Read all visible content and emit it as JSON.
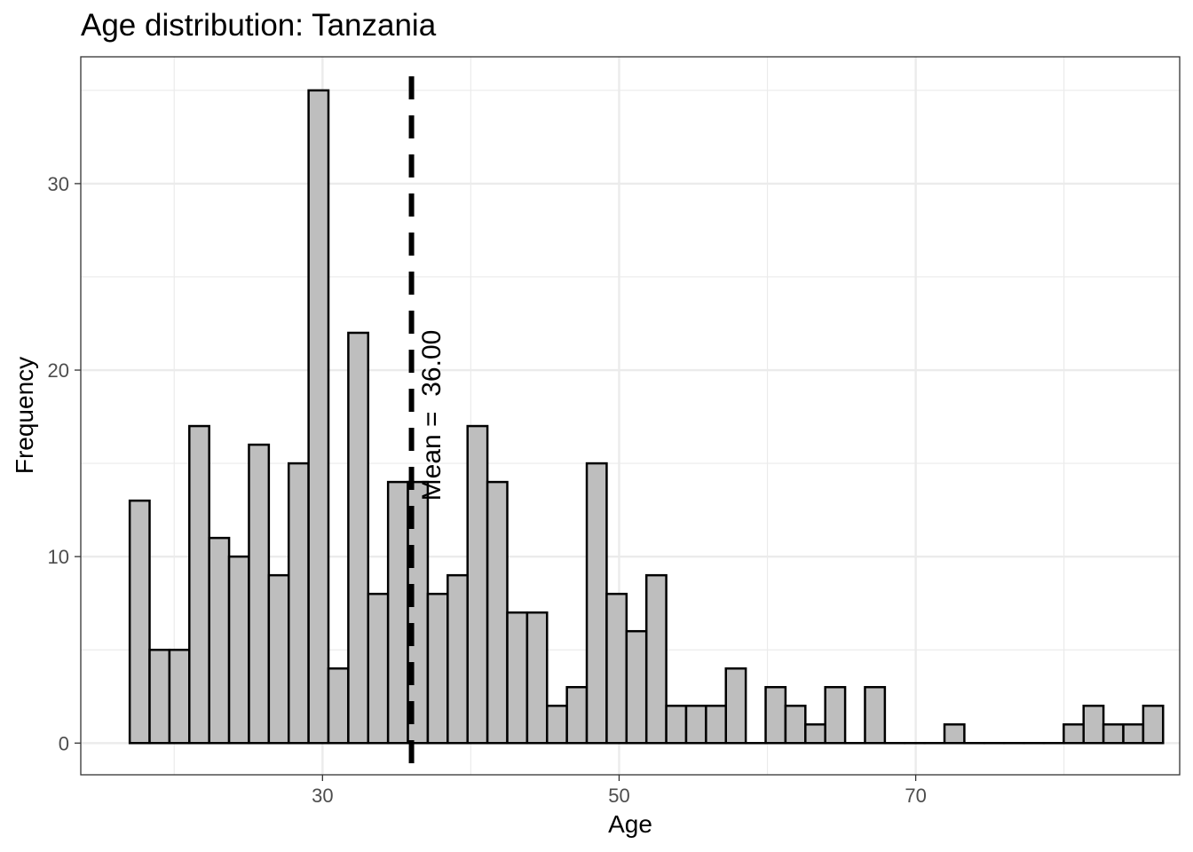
{
  "chart_data": {
    "type": "bar",
    "title": "Age distribution: Tanzania",
    "xlabel": "Age",
    "ylabel": "Frequency",
    "bin_start": 17.0,
    "bin_width": 1.34,
    "bin_counts": [
      13,
      5,
      5,
      17,
      11,
      10,
      16,
      9,
      15,
      35,
      4,
      22,
      8,
      14,
      14,
      8,
      9,
      17,
      14,
      7,
      7,
      2,
      3,
      15,
      8,
      6,
      9,
      2,
      2,
      2,
      4,
      0,
      3,
      2,
      1,
      3,
      0,
      3,
      0,
      0,
      0,
      1,
      0,
      0,
      0,
      0,
      0,
      1,
      2,
      1,
      1,
      2
    ],
    "xlim": [
      13.7,
      87.8
    ],
    "ylim": [
      -1.7,
      36.8
    ],
    "x_ticks": [
      30,
      50,
      70
    ],
    "y_ticks": [
      0,
      10,
      20,
      30
    ],
    "mean_line": {
      "value": 36.0,
      "label": "Mean =  36.00"
    },
    "grid": true,
    "colors": {
      "bar_fill": "#bebebe",
      "bar_stroke": "#000000",
      "grid": "#ebebeb",
      "panel_border": "#333333",
      "mean_line": "#000000"
    }
  }
}
